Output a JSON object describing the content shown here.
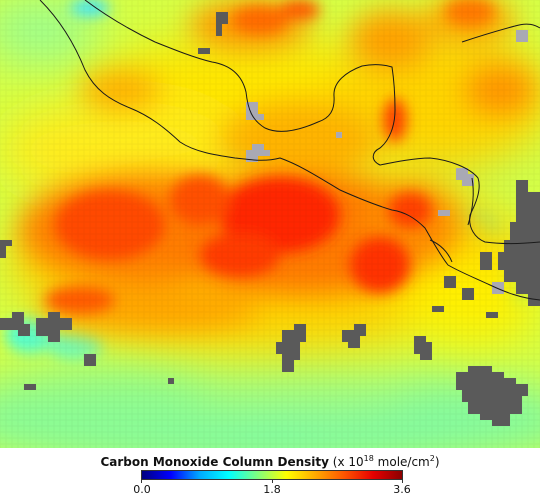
{
  "legend": {
    "title_bold": "Carbon Monoxide Column Density",
    "units_prefix": "(x 10",
    "units_exp": "18",
    "units_mid": " mole/cm",
    "units_sq": "2",
    "units_suffix": ")",
    "ticks": [
      "0.0",
      "1.8",
      "3.6"
    ],
    "range": [
      0,
      3.6
    ],
    "colors": [
      "#000080",
      "#0000ff",
      "#00aaff",
      "#00ffff",
      "#7fff7f",
      "#ffff00",
      "#ffaa00",
      "#ff5500",
      "#e60000",
      "#8b0000"
    ]
  },
  "map": {
    "no_data_color": "#5a5a5a",
    "land_no_data_color": "#a9a9b4",
    "coastline_color": "#1a1a1a"
  }
}
